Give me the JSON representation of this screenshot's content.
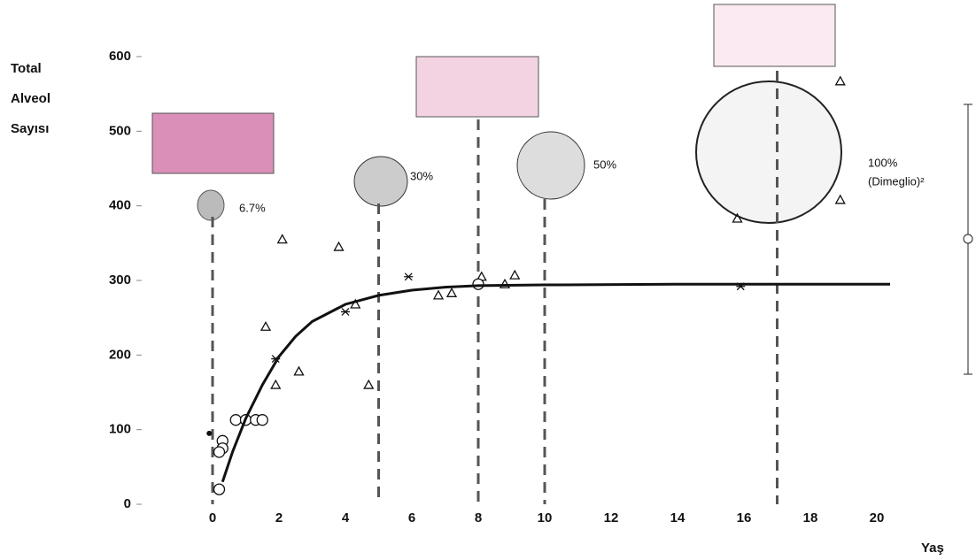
{
  "chart_data": {
    "type": "scatter",
    "y_label": [
      "Total",
      "Alveol",
      "Sayısı"
    ],
    "x_label": "Yaş",
    "xlim": [
      -2.5,
      21
    ],
    "xticks": [
      0,
      2,
      4,
      6,
      8,
      10,
      12,
      14,
      16,
      18,
      20
    ],
    "ylim": [
      0,
      600
    ],
    "yticks": [
      0,
      100,
      200,
      300,
      400,
      500,
      600
    ],
    "color": "#111111",
    "vlines": [
      0,
      5,
      8,
      10,
      17
    ],
    "annotations": [
      "6.7%",
      "30%",
      "50%",
      "100%",
      "(Dimeglio)²"
    ],
    "series": [
      {
        "marker": "triangle",
        "x": [
          2.1,
          3.8,
          1.6,
          4.3,
          2.6,
          4.7,
          1.9,
          6.8,
          7.2,
          8.1,
          8.8,
          9.1,
          15.8,
          18.9,
          18.9
        ],
        "values": [
          355,
          345,
          238,
          268,
          178,
          160,
          160,
          280,
          283,
          305,
          295,
          307,
          383,
          567,
          408
        ]
      },
      {
        "marker": "circle",
        "x": [
          0.2,
          0.3,
          0.3,
          0.2,
          0.7,
          1.0,
          1.3,
          1.5,
          8.0
        ],
        "values": [
          20,
          85,
          75,
          70,
          113,
          113,
          113,
          113,
          295
        ]
      },
      {
        "marker": "asterisk",
        "x": [
          1.9,
          4.0,
          5.9,
          15.9
        ],
        "values": [
          195,
          258,
          305,
          292
        ]
      },
      {
        "marker": "dot",
        "x": [
          -0.1
        ],
        "values": [
          95
        ]
      },
      {
        "marker": "line",
        "x": [
          0.3,
          0.6,
          1,
          1.5,
          2,
          2.5,
          3,
          4,
          5,
          6,
          7,
          8,
          10,
          14,
          20.4
        ],
        "values": [
          30,
          70,
          115,
          160,
          198,
          225,
          245,
          268,
          280,
          287,
          291,
          293,
          294,
          295,
          295
        ]
      }
    ]
  }
}
